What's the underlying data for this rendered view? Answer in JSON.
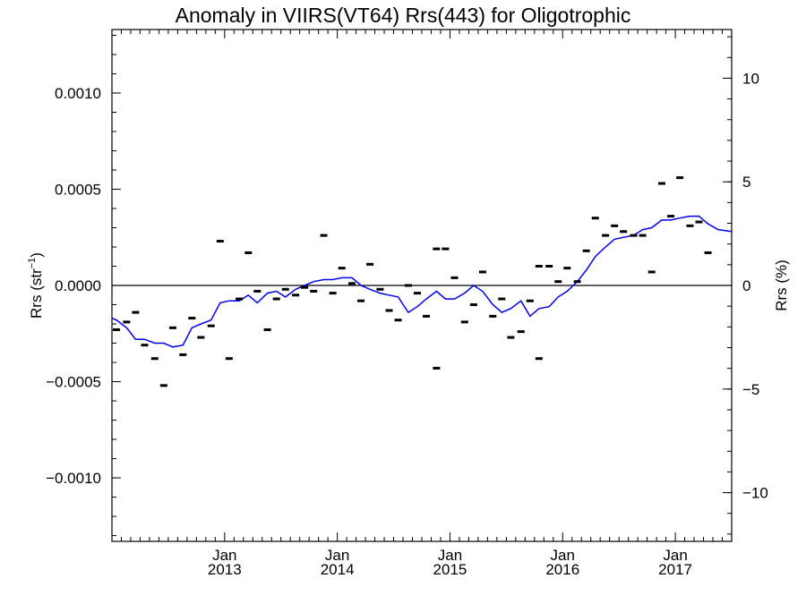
{
  "chart_data": {
    "type": "scatter",
    "title": "Anomaly in VIIRS(VT64) Rrs(443) for Oligotrophic",
    "ylabel_left": "Rrs (str",
    "ylabel_left_sup": "−1",
    "ylabel_left_close": ")",
    "ylabel_right": "Rrs (%)",
    "xlim": [
      2012.0,
      2017.5
    ],
    "ylim_left": [
      -0.00133,
      0.00133
    ],
    "ylim_right": [
      -12.35,
      12.35
    ],
    "left_ticks": [
      {
        "value": 0.001,
        "label": "0.0010"
      },
      {
        "value": 0.0005,
        "label": "0.0005"
      },
      {
        "value": 0.0,
        "label": "0.0000"
      },
      {
        "value": -0.0005,
        "label": "−0.0005"
      },
      {
        "value": -0.001,
        "label": "−0.0010"
      }
    ],
    "right_ticks": [
      {
        "value": 10,
        "label": "10"
      },
      {
        "value": 5,
        "label": "5"
      },
      {
        "value": 0,
        "label": "0"
      },
      {
        "value": -5,
        "label": "−5"
      },
      {
        "value": -10,
        "label": "−10"
      }
    ],
    "x_ticks": [
      {
        "value": 2013.0,
        "month": "Jan",
        "year": "2013"
      },
      {
        "value": 2014.0,
        "month": "Jan",
        "year": "2014"
      },
      {
        "value": 2015.0,
        "month": "Jan",
        "year": "2015"
      },
      {
        "value": 2016.0,
        "month": "Jan",
        "year": "2016"
      },
      {
        "value": 2017.0,
        "month": "Jan",
        "year": "2017"
      }
    ],
    "series": [
      {
        "kind": "markers",
        "color": "#000000",
        "points": [
          [
            2012.04,
            -0.00023
          ],
          [
            2012.13,
            -0.00019
          ],
          [
            2012.21,
            -0.00014
          ],
          [
            2012.29,
            -0.00031
          ],
          [
            2012.38,
            -0.00038
          ],
          [
            2012.46,
            -0.00052
          ],
          [
            2012.54,
            -0.00022
          ],
          [
            2012.63,
            -0.00036
          ],
          [
            2012.71,
            -0.00017
          ],
          [
            2012.79,
            -0.00027
          ],
          [
            2012.88,
            -0.00021
          ],
          [
            2012.96,
            0.00023
          ],
          [
            2013.04,
            -0.00038
          ],
          [
            2013.13,
            -7e-05
          ],
          [
            2013.21,
            0.00017
          ],
          [
            2013.29,
            -3e-05
          ],
          [
            2013.38,
            -0.00023
          ],
          [
            2013.46,
            -7e-05
          ],
          [
            2013.54,
            -2e-05
          ],
          [
            2013.63,
            -5e-05
          ],
          [
            2013.71,
            -1e-05
          ],
          [
            2013.79,
            -3e-05
          ],
          [
            2013.88,
            0.00026
          ],
          [
            2013.96,
            -4e-05
          ],
          [
            2014.04,
            9e-05
          ],
          [
            2014.13,
            1e-05
          ],
          [
            2014.21,
            -8e-05
          ],
          [
            2014.29,
            0.00011
          ],
          [
            2014.38,
            -2e-05
          ],
          [
            2014.46,
            -0.00013
          ],
          [
            2014.54,
            -0.00018
          ],
          [
            2014.63,
            0.0
          ],
          [
            2014.71,
            -4e-05
          ],
          [
            2014.79,
            -0.00016
          ],
          [
            2014.88,
            -0.00043
          ],
          [
            2014.88,
            0.00019
          ],
          [
            2014.96,
            0.00019
          ],
          [
            2015.04,
            4e-05
          ],
          [
            2015.13,
            -0.00019
          ],
          [
            2015.21,
            -0.0001
          ],
          [
            2015.29,
            7e-05
          ],
          [
            2015.38,
            -0.00016
          ],
          [
            2015.46,
            -7e-05
          ],
          [
            2015.54,
            -0.00027
          ],
          [
            2015.63,
            -0.00024
          ],
          [
            2015.71,
            -8e-05
          ],
          [
            2015.79,
            0.0001
          ],
          [
            2015.79,
            -0.00038
          ],
          [
            2015.88,
            0.0001
          ],
          [
            2015.96,
            2e-05
          ],
          [
            2016.04,
            9e-05
          ],
          [
            2016.13,
            2e-05
          ],
          [
            2016.21,
            0.00018
          ],
          [
            2016.29,
            0.00035
          ],
          [
            2016.38,
            0.00026
          ],
          [
            2016.46,
            0.00031
          ],
          [
            2016.54,
            0.00028
          ],
          [
            2016.63,
            0.00026
          ],
          [
            2016.71,
            0.00026
          ],
          [
            2016.79,
            7e-05
          ],
          [
            2016.88,
            0.00053
          ],
          [
            2016.96,
            0.00036
          ],
          [
            2017.04,
            0.00056
          ],
          [
            2017.13,
            0.00031
          ],
          [
            2017.21,
            0.00033
          ],
          [
            2017.29,
            0.00017
          ]
        ]
      },
      {
        "kind": "line",
        "color": "#0000ee",
        "points": [
          [
            2012.0,
            -0.00017
          ],
          [
            2012.04,
            -0.00018
          ],
          [
            2012.13,
            -0.00022
          ],
          [
            2012.21,
            -0.00028
          ],
          [
            2012.29,
            -0.00028
          ],
          [
            2012.38,
            -0.0003
          ],
          [
            2012.46,
            -0.0003
          ],
          [
            2012.54,
            -0.00032
          ],
          [
            2012.63,
            -0.00031
          ],
          [
            2012.71,
            -0.00022
          ],
          [
            2012.79,
            -0.0002
          ],
          [
            2012.88,
            -0.00018
          ],
          [
            2012.96,
            -9e-05
          ],
          [
            2013.04,
            -8e-05
          ],
          [
            2013.13,
            -8e-05
          ],
          [
            2013.21,
            -5e-05
          ],
          [
            2013.29,
            -9e-05
          ],
          [
            2013.38,
            -4e-05
          ],
          [
            2013.46,
            -3e-05
          ],
          [
            2013.54,
            -6e-05
          ],
          [
            2013.63,
            -2e-05
          ],
          [
            2013.71,
            0.0
          ],
          [
            2013.79,
            2e-05
          ],
          [
            2013.88,
            3e-05
          ],
          [
            2013.96,
            3e-05
          ],
          [
            2014.04,
            4e-05
          ],
          [
            2014.13,
            4e-05
          ],
          [
            2014.21,
            0.0
          ],
          [
            2014.29,
            -2e-05
          ],
          [
            2014.38,
            -4e-05
          ],
          [
            2014.46,
            -5e-05
          ],
          [
            2014.54,
            -6e-05
          ],
          [
            2014.63,
            -0.00014
          ],
          [
            2014.71,
            -0.00011
          ],
          [
            2014.79,
            -7e-05
          ],
          [
            2014.88,
            -3e-05
          ],
          [
            2014.96,
            -7e-05
          ],
          [
            2015.04,
            -7e-05
          ],
          [
            2015.13,
            -4e-05
          ],
          [
            2015.21,
            0.0
          ],
          [
            2015.29,
            -3e-05
          ],
          [
            2015.38,
            -0.0001
          ],
          [
            2015.46,
            -0.00014
          ],
          [
            2015.54,
            -0.00012
          ],
          [
            2015.63,
            -8e-05
          ],
          [
            2015.71,
            -0.00016
          ],
          [
            2015.79,
            -0.00012
          ],
          [
            2015.88,
            -0.00011
          ],
          [
            2015.96,
            -6e-05
          ],
          [
            2016.04,
            -3e-05
          ],
          [
            2016.13,
            2e-05
          ],
          [
            2016.21,
            8e-05
          ],
          [
            2016.29,
            0.00015
          ],
          [
            2016.38,
            0.0002
          ],
          [
            2016.46,
            0.00024
          ],
          [
            2016.54,
            0.00025
          ],
          [
            2016.63,
            0.00026
          ],
          [
            2016.71,
            0.00029
          ],
          [
            2016.79,
            0.0003
          ],
          [
            2016.88,
            0.00034
          ],
          [
            2016.96,
            0.00034
          ],
          [
            2017.04,
            0.00035
          ],
          [
            2017.13,
            0.00036
          ],
          [
            2017.21,
            0.00036
          ],
          [
            2017.29,
            0.00032
          ],
          [
            2017.38,
            0.00029
          ],
          [
            2017.5,
            0.00028
          ]
        ]
      }
    ],
    "zero_line": true,
    "grid": false
  }
}
